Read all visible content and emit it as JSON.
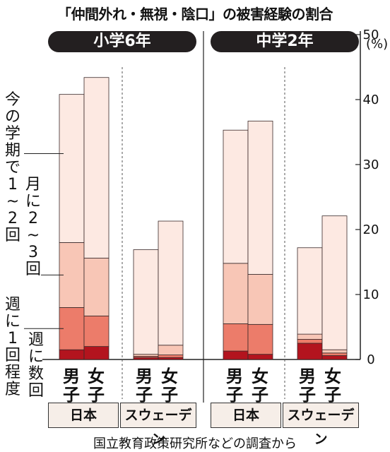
{
  "title": "「仲間外れ・無視・陰口」の被害経験の割合",
  "source": "国立教育政策研究所などの調査から",
  "chart_data": {
    "type": "bar",
    "stacked": true,
    "grades": [
      "小学6年",
      "中学2年"
    ],
    "countries": [
      "日本",
      "スウェーデン"
    ],
    "genders": [
      "男子",
      "女子"
    ],
    "categories": [
      "小学6年 日本 男子",
      "小学6年 日本 女子",
      "小学6年 スウェーデン 男子",
      "小学6年 スウェーデン 女子",
      "中学2年 日本 男子",
      "中学2年 日本 女子",
      "中学2年 スウェーデン 男子",
      "中学2年 スウェーデン 女子"
    ],
    "series": [
      {
        "name": "週に数回",
        "color": "#b3141e",
        "values": [
          1.5,
          2.0,
          0.3,
          0.3,
          1.3,
          0.8,
          2.5,
          0.6
        ]
      },
      {
        "name": "週に1回程度",
        "color": "#ec7c6a",
        "values": [
          6.5,
          4.7,
          0.2,
          0.4,
          4.2,
          4.6,
          0.6,
          0.4
        ]
      },
      {
        "name": "月に2~3回",
        "color": "#f8c6b6",
        "values": [
          10.0,
          8.9,
          0.3,
          1.5,
          9.3,
          7.7,
          0.8,
          0.5
        ]
      },
      {
        "name": "今の学期で1~2回",
        "color": "#fde9e2",
        "values": [
          22.8,
          27.8,
          16.1,
          19.1,
          20.5,
          23.6,
          13.3,
          20.6
        ]
      }
    ],
    "ylim": [
      0,
      50
    ],
    "yticks": [
      0,
      10,
      20,
      30,
      40,
      50
    ],
    "yunit": "(%)"
  }
}
